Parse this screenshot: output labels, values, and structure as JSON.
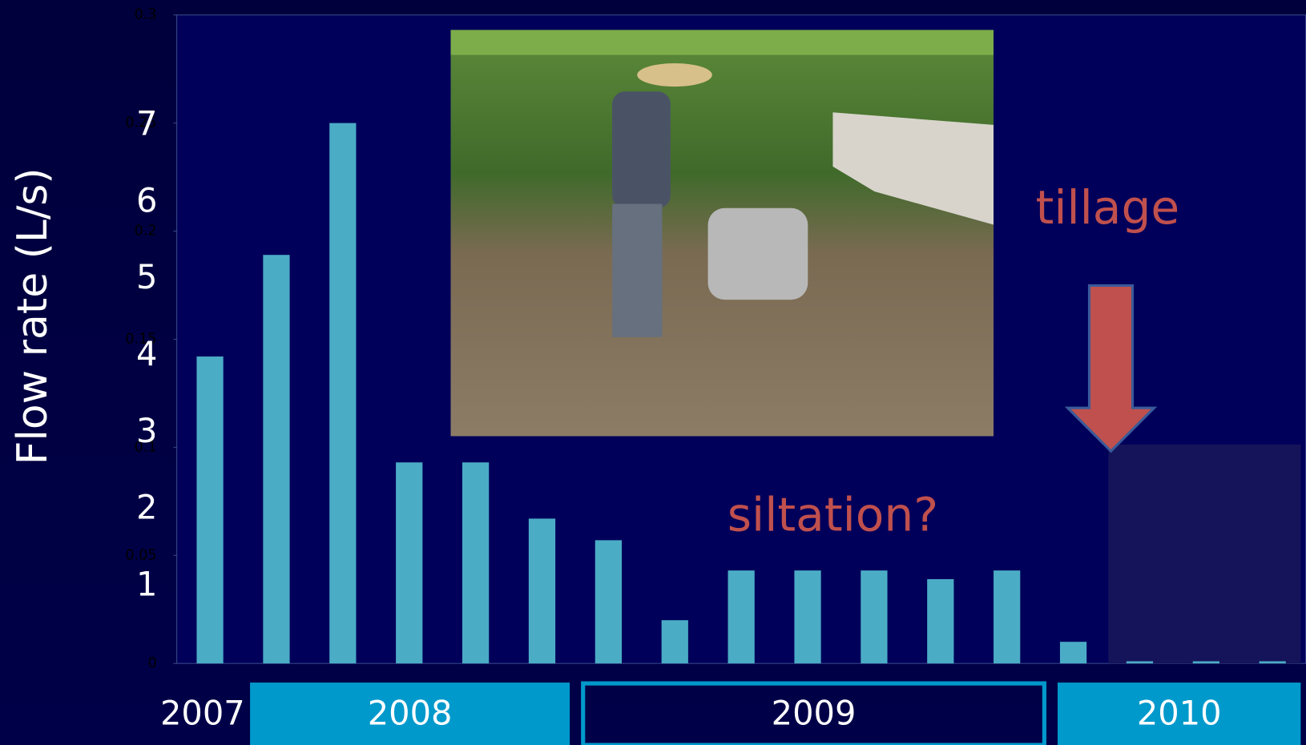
{
  "chart_data": {
    "type": "bar",
    "y_label": "Flow rate (L/s)",
    "categories": [
      null,
      null,
      null,
      null,
      null,
      null,
      null,
      null,
      null,
      null,
      null,
      null,
      null,
      null,
      null,
      null,
      null
    ],
    "values": [
      0.142,
      0.189,
      0.25,
      0.093,
      0.093,
      0.067,
      0.057,
      0.02,
      0.043,
      0.043,
      0.043,
      0.039,
      0.043,
      0.01,
      0.001,
      0.001,
      0.001
    ],
    "color": "#4bacc6",
    "ylim": [
      0,
      0.3
    ],
    "yticks": [
      0,
      0.05,
      0.1,
      0.15,
      0.2,
      0.25,
      0.3
    ],
    "y2lim": [
      0,
      8.45
    ],
    "y2ticks": [
      1,
      2,
      3,
      4,
      5,
      6,
      7
    ],
    "periods": [
      "2007",
      "2008",
      "2009",
      "2010"
    ],
    "annotations": [
      "siltation?",
      "tillage"
    ]
  }
}
